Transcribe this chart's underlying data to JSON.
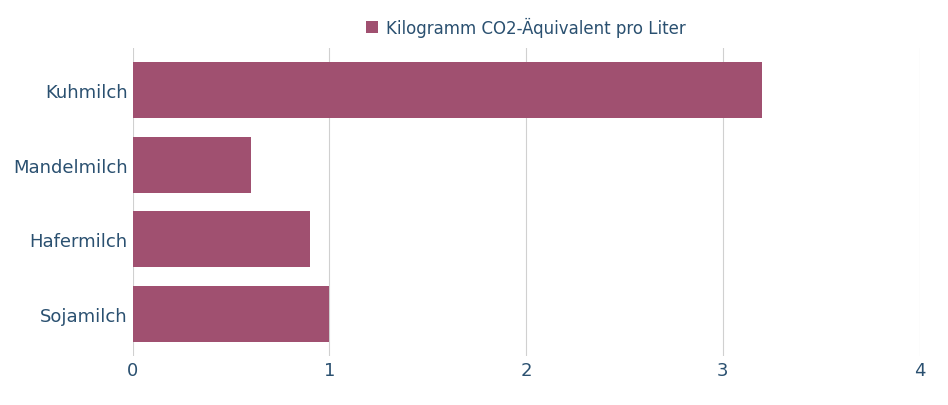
{
  "categories": [
    "Kuhmilch",
    "Mandelmilch",
    "Hafermilch",
    "Sojamilch"
  ],
  "values": [
    3.2,
    0.6,
    0.9,
    1.0
  ],
  "bar_color": "#a05070",
  "legend_label": "Kilogramm CO2-Äquivalent pro Liter",
  "legend_marker_color": "#a05070",
  "xlim": [
    0,
    4
  ],
  "xticks": [
    0,
    1,
    2,
    3,
    4
  ],
  "label_fontsize": 13,
  "legend_fontsize": 12,
  "background_color": "#ffffff",
  "grid_color": "#d0d0d0",
  "text_color": "#2a5070"
}
